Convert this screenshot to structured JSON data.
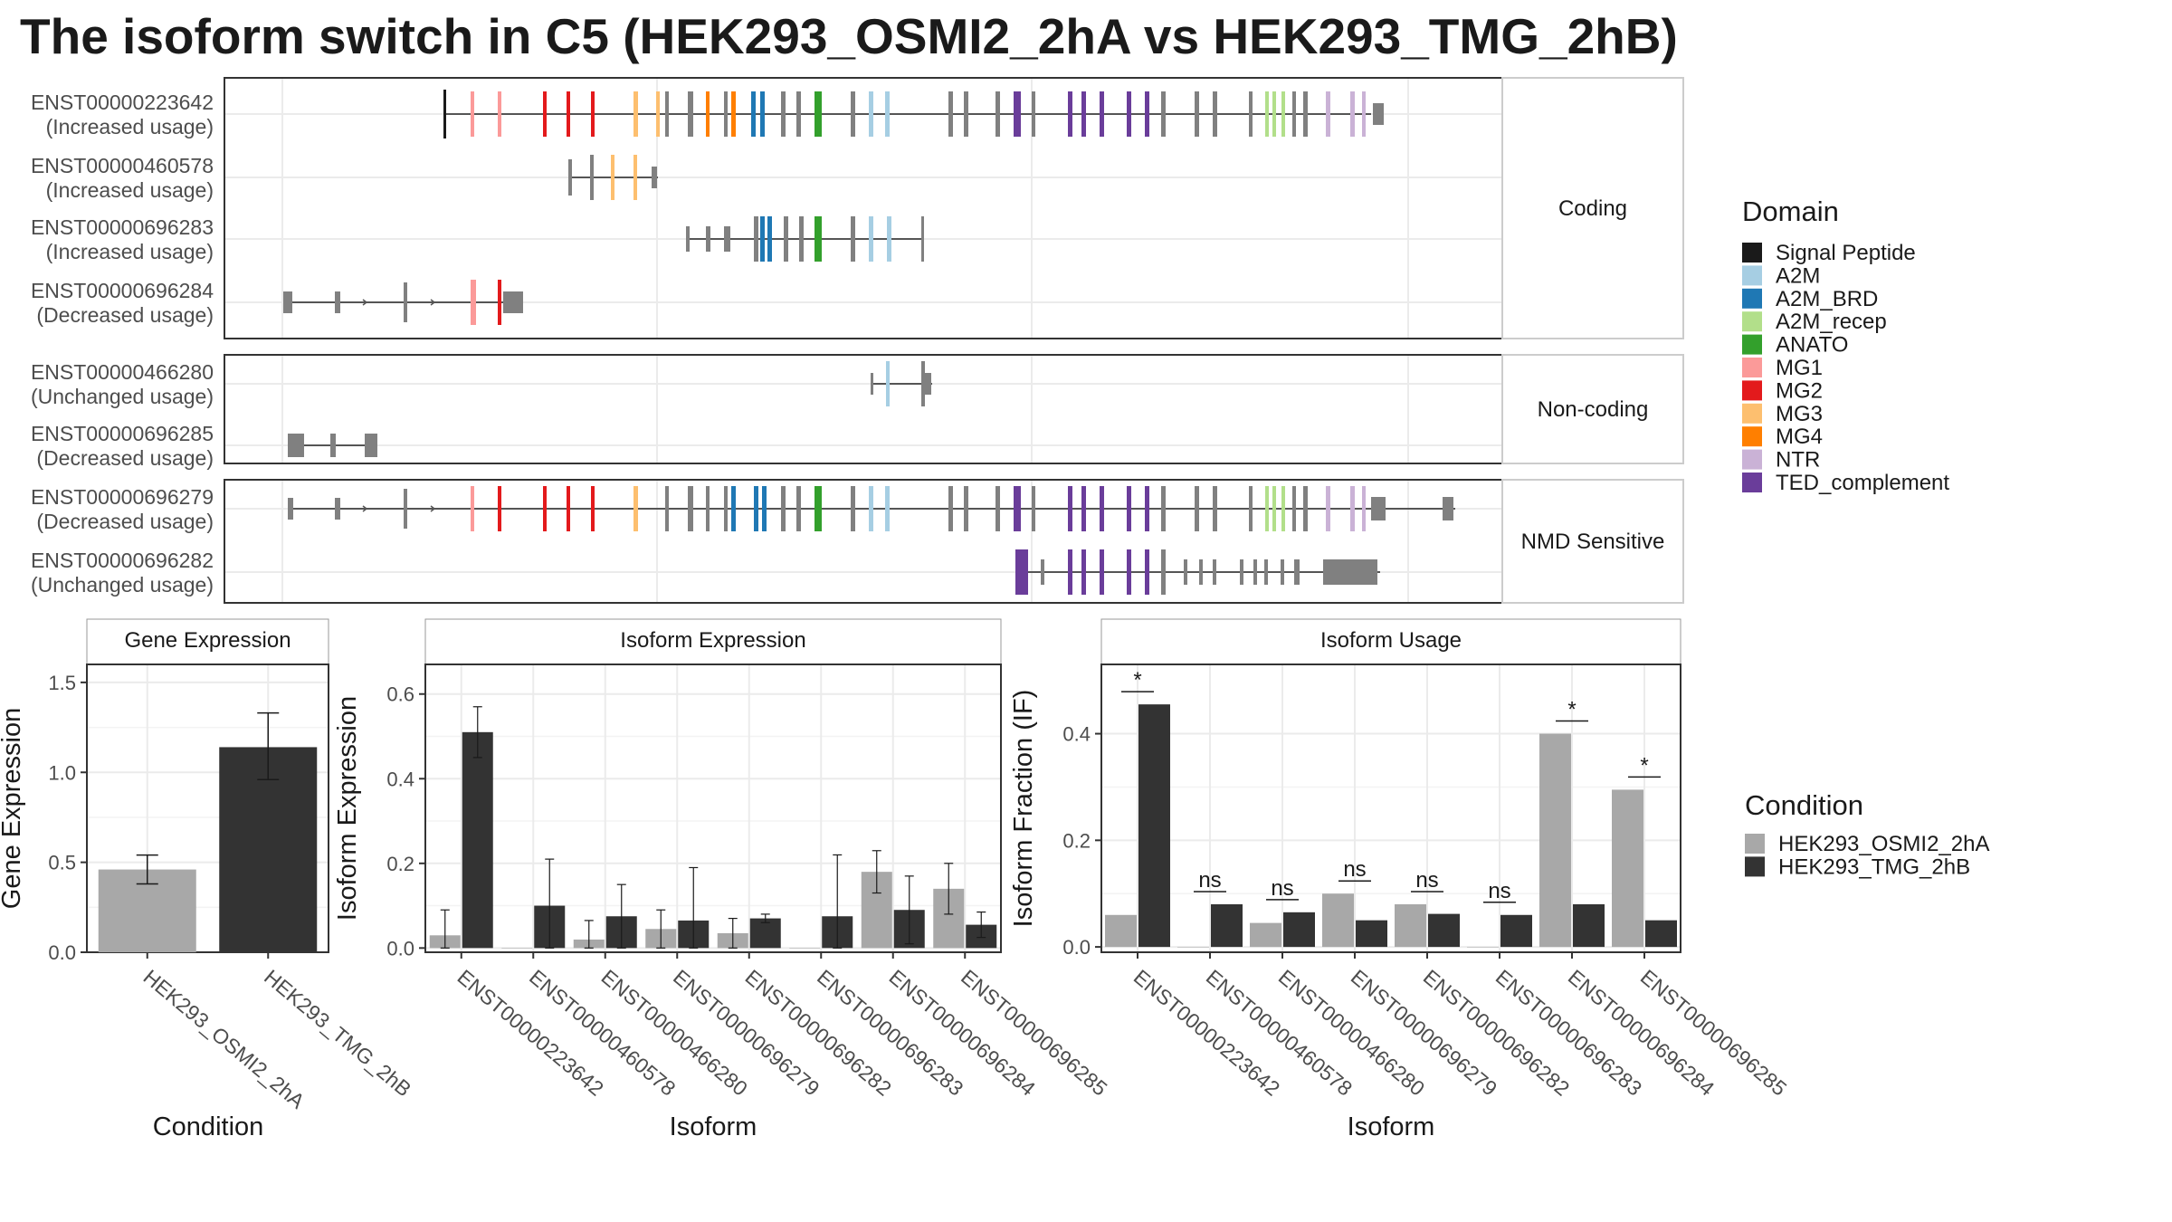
{
  "title": "The isoform switch in C5 (HEK293_OSMI2_2hA vs HEK293_TMG_2hB)",
  "colors": {
    "condition": {
      "HEK293_OSMI2_2hA": "#a8a8a8",
      "HEK293_TMG_2hB": "#333333"
    },
    "exon": "#808080",
    "domains": {
      "Signal Peptide": "#1a1a1a",
      "A2M": "#a6cee3",
      "A2M_BRD": "#1f78b4",
      "A2M_recep": "#b2df8a",
      "ANATO": "#33a02c",
      "MG1": "#fb9a99",
      "MG2": "#e31a1c",
      "MG3": "#fdbf6f",
      "MG4": "#ff7f00",
      "NTR": "#cab2d6",
      "TED_complement": "#6a3d9a"
    }
  },
  "legends": {
    "domain": {
      "title": "Domain",
      "items": [
        "Signal Peptide",
        "A2M",
        "A2M_BRD",
        "A2M_recep",
        "ANATO",
        "MG1",
        "MG2",
        "MG3",
        "MG4",
        "NTR",
        "TED_complement"
      ]
    },
    "condition": {
      "title": "Condition",
      "items": [
        "HEK293_OSMI2_2hA",
        "HEK293_TMG_2hB"
      ]
    }
  },
  "chart_data": [
    {
      "type": "isoform_structure",
      "panels": [
        {
          "strip": "Coding",
          "transcripts": [
            {
              "id": "ENST00000223642",
              "usage": "(Increased usage)"
            },
            {
              "id": "ENST00000460578",
              "usage": "(Increased usage)"
            },
            {
              "id": "ENST00000696283",
              "usage": "(Increased usage)"
            },
            {
              "id": "ENST00000696284",
              "usage": "(Decreased usage)"
            }
          ]
        },
        {
          "strip": "Non-coding",
          "transcripts": [
            {
              "id": "ENST00000466280",
              "usage": "(Unchanged usage)"
            },
            {
              "id": "ENST00000696285",
              "usage": "(Decreased usage)"
            }
          ]
        },
        {
          "strip": "NMD Sensitive",
          "transcripts": [
            {
              "id": "ENST00000696279",
              "usage": "(Decreased usage)"
            },
            {
              "id": "ENST00000696282",
              "usage": "(Unchanged usage)"
            }
          ]
        }
      ]
    },
    {
      "type": "bar",
      "strip": "Gene Expression",
      "xlabel": "Condition",
      "ylabel": "Gene Expression",
      "categories": [
        "HEK293_OSMI2_2hA",
        "HEK293_TMG_2hB"
      ],
      "values": [
        0.46,
        1.14
      ],
      "error_low": [
        0.38,
        0.96
      ],
      "error_high": [
        0.54,
        1.33
      ],
      "ylim": [
        0,
        1.6
      ],
      "yticks": [
        0.0,
        0.5,
        1.0,
        1.5
      ],
      "ytick_labels": [
        "0.0",
        "0.5",
        "1.0",
        "1.5"
      ]
    },
    {
      "type": "bar",
      "strip": "Isoform Expression",
      "xlabel": "Isoform",
      "ylabel": "Isoform Expression",
      "categories": [
        "ENST00000223642",
        "ENST00000460578",
        "ENST00000466280",
        "ENST00000696279",
        "ENST00000696282",
        "ENST00000696283",
        "ENST00000696284",
        "ENST00000696285"
      ],
      "series": [
        {
          "name": "HEK293_OSMI2_2hA",
          "values": [
            0.03,
            0.0,
            0.02,
            0.045,
            0.035,
            0.0,
            0.18,
            0.14
          ],
          "error_high": [
            0.09,
            0.0,
            0.065,
            0.09,
            0.07,
            0.0,
            0.23,
            0.2
          ]
        },
        {
          "name": "HEK293_TMG_2hB",
          "values": [
            0.51,
            0.1,
            0.075,
            0.065,
            0.07,
            0.075,
            0.09,
            0.055
          ],
          "error_high": [
            0.57,
            0.21,
            0.15,
            0.19,
            0.08,
            0.22,
            0.17,
            0.085
          ]
        }
      ],
      "ylim": [
        -0.01,
        0.67
      ],
      "yticks": [
        0.0,
        0.2,
        0.4,
        0.6
      ],
      "ytick_labels": [
        "0.0",
        "0.2",
        "0.4",
        "0.6"
      ]
    },
    {
      "type": "bar",
      "strip": "Isoform Usage",
      "xlabel": "Isoform",
      "ylabel": "Isoform Fraction (IF)",
      "categories": [
        "ENST00000223642",
        "ENST00000460578",
        "ENST00000466280",
        "ENST00000696279",
        "ENST00000696282",
        "ENST00000696283",
        "ENST00000696284",
        "ENST00000696285"
      ],
      "series": [
        {
          "name": "HEK293_OSMI2_2hA",
          "values": [
            0.06,
            0.0,
            0.045,
            0.1,
            0.08,
            0.0,
            0.4,
            0.295
          ]
        },
        {
          "name": "HEK293_TMG_2hB",
          "values": [
            0.455,
            0.08,
            0.065,
            0.05,
            0.062,
            0.06,
            0.08,
            0.05
          ]
        }
      ],
      "significance": [
        "*",
        "ns",
        "ns",
        "ns",
        "ns",
        "ns",
        "*",
        "*"
      ],
      "ylim": [
        -0.01,
        0.53
      ],
      "yticks": [
        0.0,
        0.2,
        0.4
      ],
      "ytick_labels": [
        "0.0",
        "0.2",
        "0.4"
      ]
    }
  ]
}
